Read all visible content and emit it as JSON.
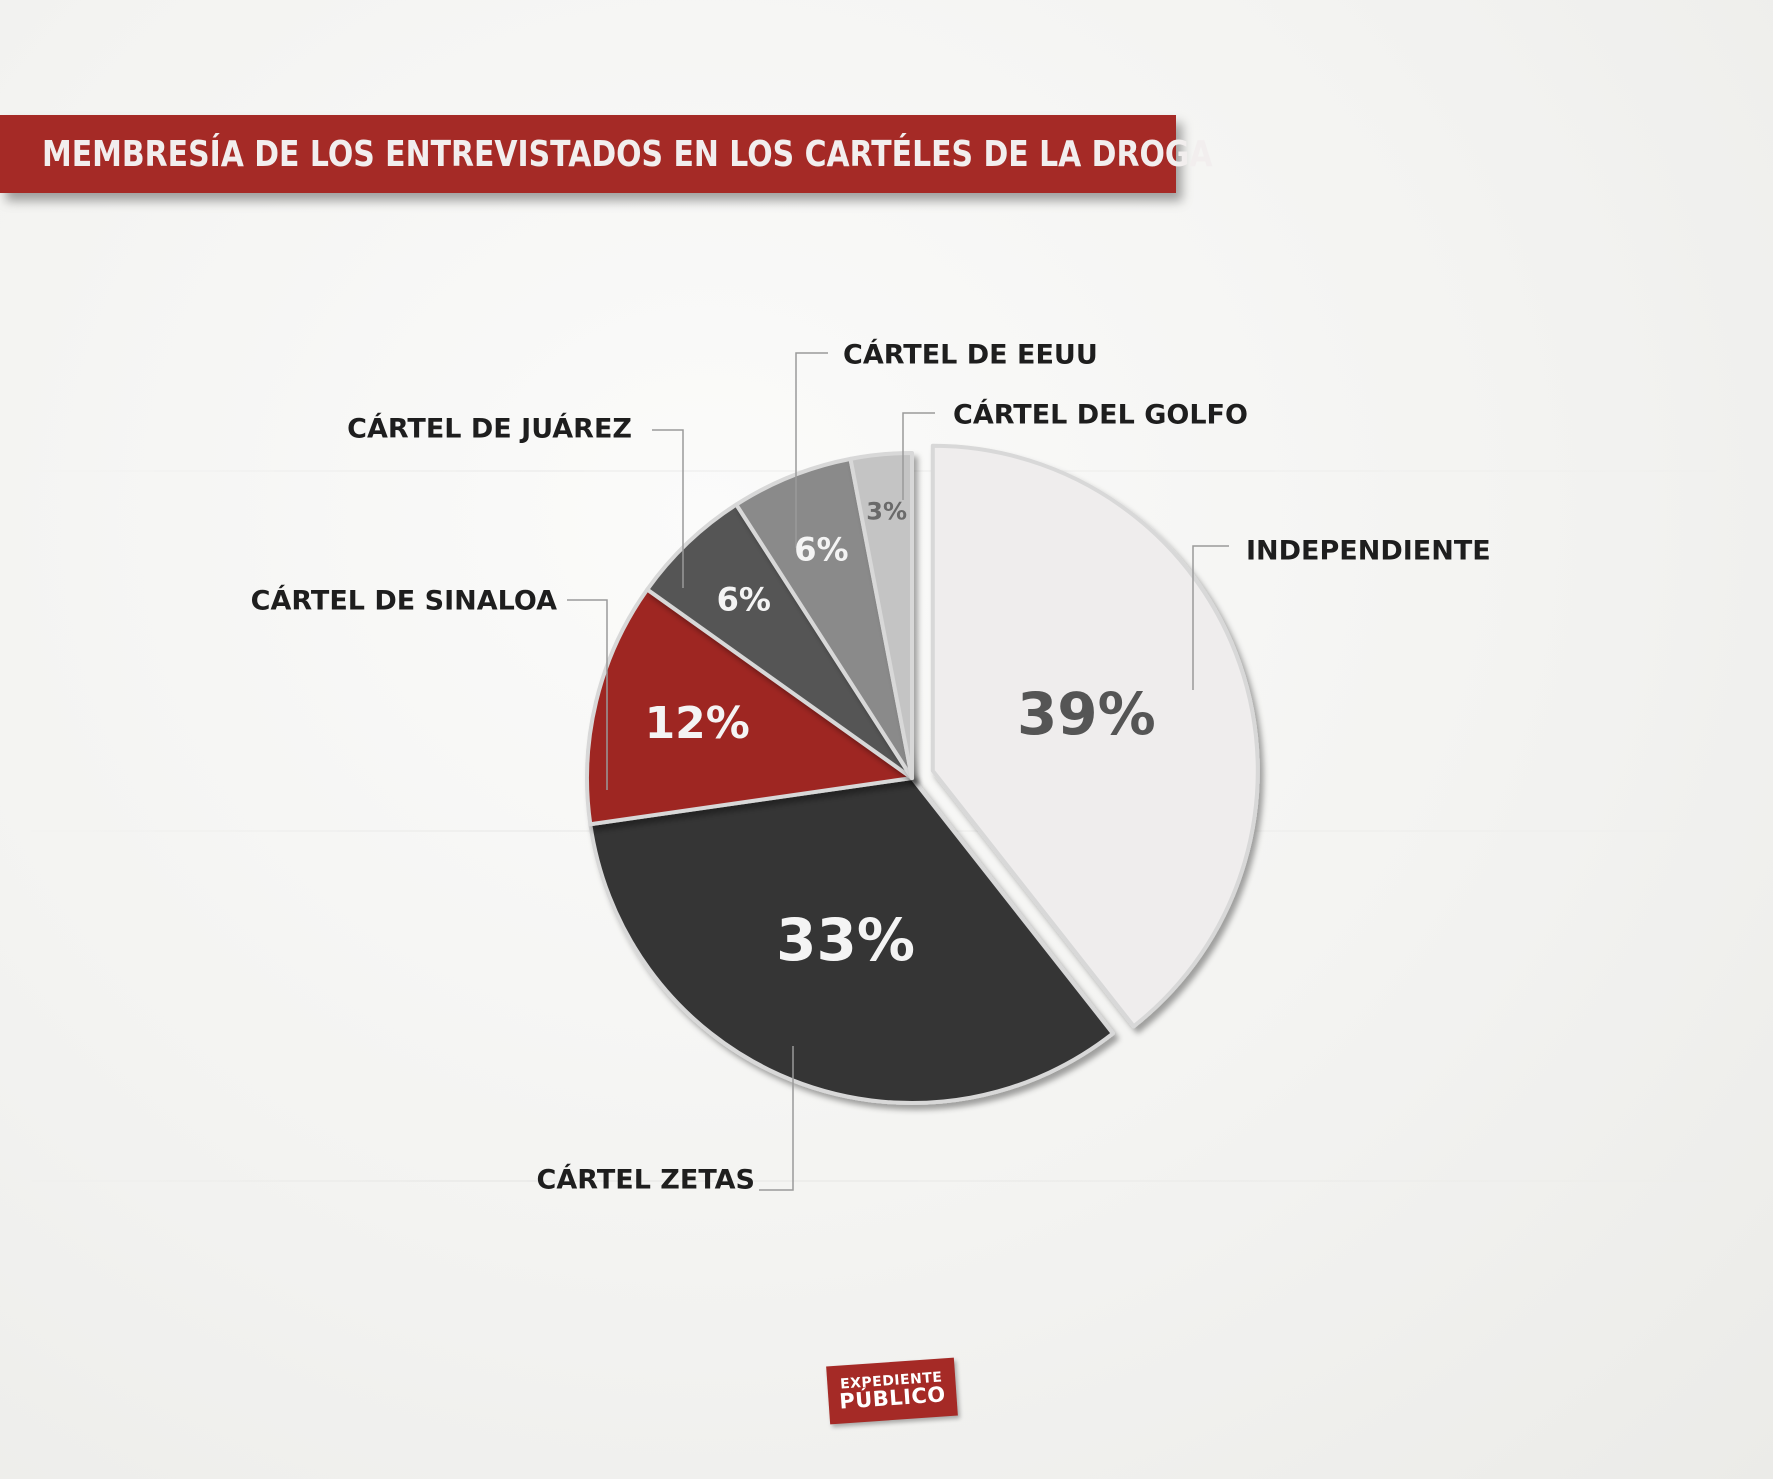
{
  "header": {
    "title": "MEMBRESÍA DE LOS ENTREVISTADOS EN LOS CARTÉLES DE LA DROGA"
  },
  "logo": {
    "line1": "EXPEDIENTE",
    "line2": "PÚBLICO"
  },
  "colors": {
    "banner": "#a52a26",
    "independiente": "#efeded",
    "zetas": "#353535",
    "sinaloa": "#9e2623",
    "juarez": "#555555",
    "eeuu": "#8a8a8a",
    "golfo": "#c4c4c4"
  },
  "chart_data": {
    "type": "pie",
    "title": "MEMBRESÍA DE LOS ENTREVISTADOS EN LOS CARTÉLES DE LA DROGA",
    "slices": [
      {
        "name": "INDEPENDIENTE",
        "value": 39,
        "label": "39%",
        "color": "#efeded",
        "label_color": "#555555"
      },
      {
        "name": "CÁRTEL ZETAS",
        "value": 33,
        "label": "33%",
        "color": "#353535",
        "label_color": "#f4f4f4"
      },
      {
        "name": "CÁRTEL DE SINALOA",
        "value": 12,
        "label": "12%",
        "color": "#9e2623",
        "label_color": "#f4f4f4"
      },
      {
        "name": "CÁRTEL DE JUÁREZ",
        "value": 6,
        "label": "6%",
        "color": "#555555",
        "label_color": "#f4f4f4"
      },
      {
        "name": "CÁRTEL DE EEUU",
        "value": 6,
        "label": "6%",
        "color": "#8a8a8a",
        "label_color": "#f4f4f4"
      },
      {
        "name": "CÁRTEL DEL GOLFO",
        "value": 3,
        "label": "3%",
        "color": "#c4c4c4",
        "label_color": "#6a6a6a"
      }
    ],
    "legend": "callouts"
  }
}
